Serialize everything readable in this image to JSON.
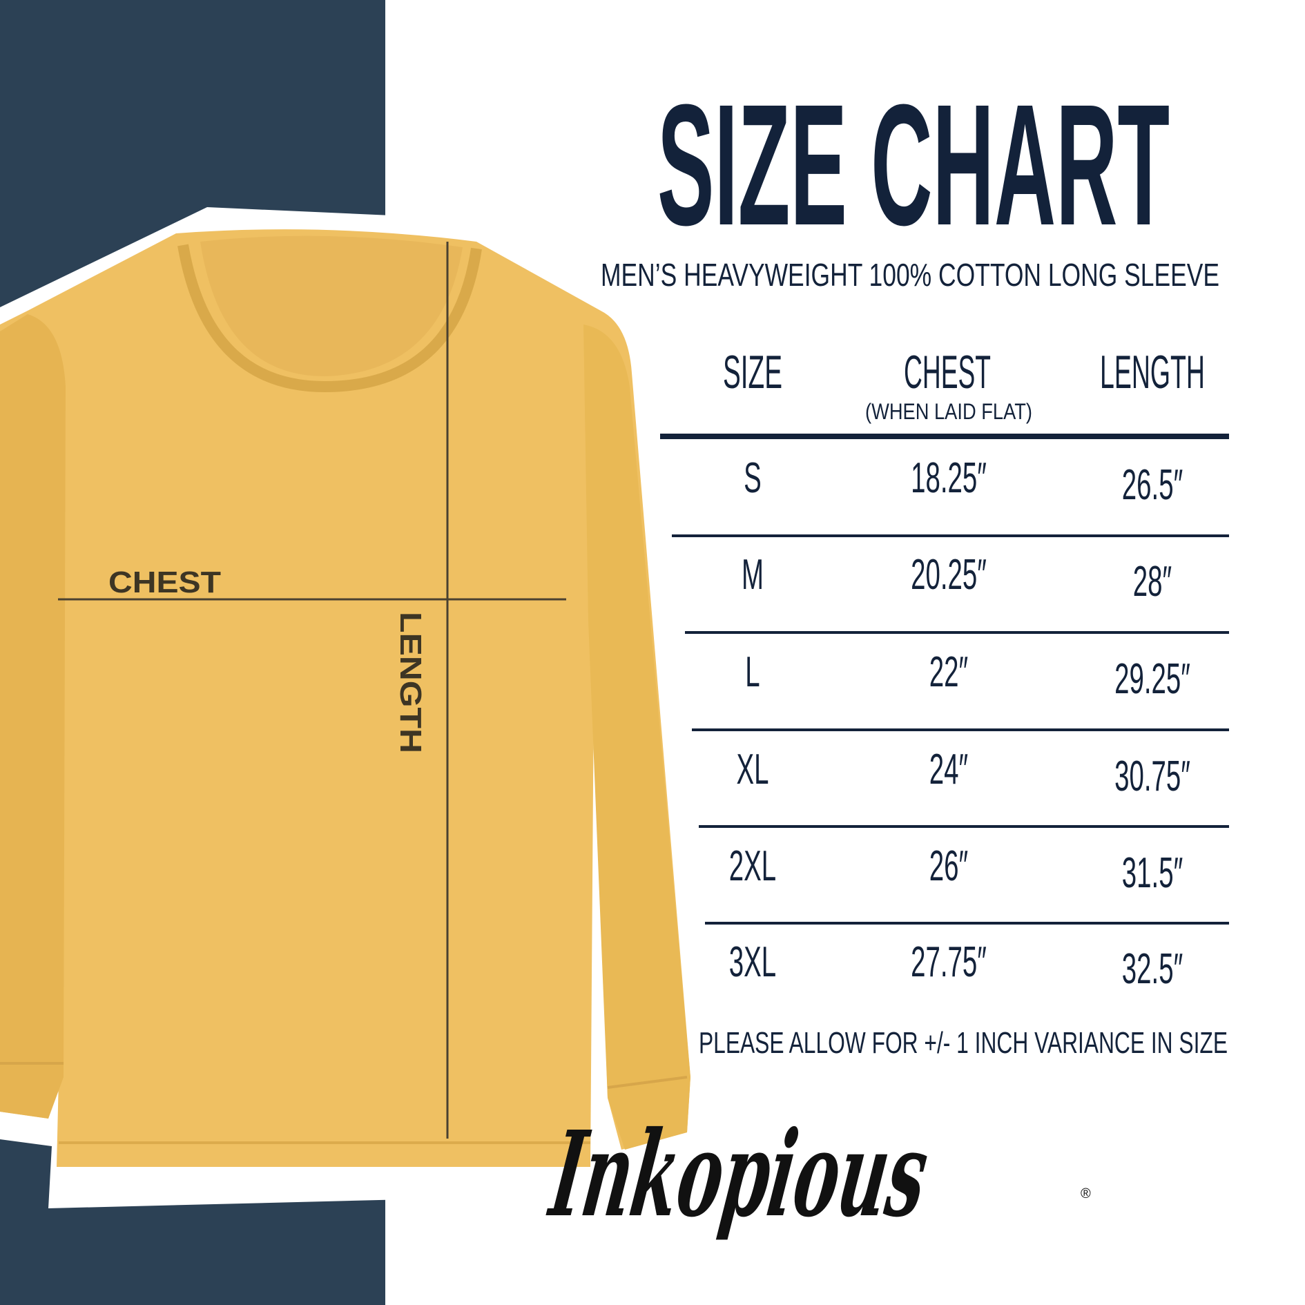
{
  "colors": {
    "panel": "#2c4155",
    "shirt": "#efc062",
    "ink": "#13223a",
    "measure_line": "#4a4130"
  },
  "title": "SIZE CHART",
  "subtitle": "MEN’S HEAVYWEIGHT 100% COTTON LONG SLEEVE",
  "shirt_labels": {
    "chest": "CHEST",
    "length": "LENGTH"
  },
  "table": {
    "headers": [
      {
        "label": "SIZE",
        "sub": ""
      },
      {
        "label": "CHEST",
        "sub": "(WHEN LAID FLAT)"
      },
      {
        "label": "LENGTH",
        "sub": ""
      }
    ],
    "rows": [
      {
        "size": "S",
        "chest": "18.25″",
        "length": "26.5″"
      },
      {
        "size": "M",
        "chest": "20.25″",
        "length": "28″"
      },
      {
        "size": "L",
        "chest": "22″",
        "length": "29.25″"
      },
      {
        "size": "XL",
        "chest": "24″",
        "length": "30.75″"
      },
      {
        "size": "2XL",
        "chest": "26″",
        "length": "31.5″"
      },
      {
        "size": "3XL",
        "chest": "27.75″",
        "length": "32.5″"
      }
    ]
  },
  "note": "PLEASE ALLOW FOR +/- 1 INCH VARIANCE IN SIZE",
  "logo": {
    "text": "Inkopious",
    "mark": "®"
  }
}
